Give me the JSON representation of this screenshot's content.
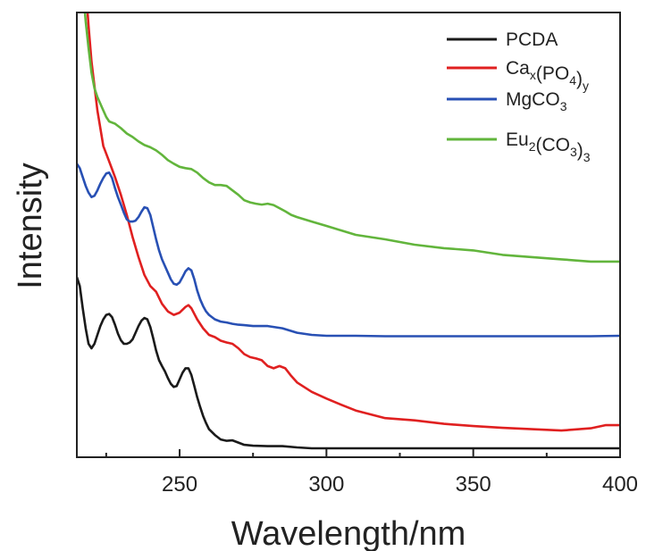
{
  "chart_data": {
    "type": "line",
    "title": "",
    "xlabel": "Wavelength/nm",
    "ylabel": "Intensity",
    "xlim": [
      215,
      400
    ],
    "ylim": [
      0,
      1
    ],
    "x_ticks": [
      250,
      300,
      350,
      400
    ],
    "x_tick_labels": [
      "250",
      "300",
      "350",
      "400"
    ],
    "y_ticks": [],
    "grid": false,
    "legend_position": "top-right",
    "series": [
      {
        "name": "PCDA",
        "legend": {
          "base": "PCDA",
          "parts": [
            {
              "t": "PCDA",
              "s": "n"
            }
          ]
        },
        "color": "#1a1a1a",
        "x": [
          215,
          216,
          217,
          218,
          219,
          220,
          221,
          222,
          223,
          224,
          225,
          226,
          227,
          228,
          229,
          230,
          231,
          232,
          233,
          234,
          235,
          236,
          237,
          238,
          239,
          240,
          241,
          242,
          243,
          244,
          245,
          246,
          247,
          248,
          249,
          250,
          251,
          252,
          253,
          254,
          255,
          256,
          257,
          258,
          259,
          260,
          262,
          264,
          266,
          268,
          270,
          272,
          275,
          280,
          285,
          290,
          295,
          300,
          310,
          320,
          330,
          340,
          350,
          360,
          370,
          380,
          390,
          400
        ],
        "y": [
          0.405,
          0.385,
          0.335,
          0.29,
          0.255,
          0.245,
          0.255,
          0.275,
          0.295,
          0.31,
          0.32,
          0.322,
          0.315,
          0.298,
          0.278,
          0.263,
          0.255,
          0.255,
          0.258,
          0.265,
          0.28,
          0.295,
          0.307,
          0.313,
          0.31,
          0.293,
          0.268,
          0.24,
          0.218,
          0.205,
          0.193,
          0.178,
          0.165,
          0.158,
          0.16,
          0.175,
          0.19,
          0.2,
          0.2,
          0.185,
          0.16,
          0.135,
          0.113,
          0.093,
          0.077,
          0.063,
          0.05,
          0.04,
          0.037,
          0.038,
          0.033,
          0.028,
          0.026,
          0.025,
          0.025,
          0.022,
          0.02,
          0.02,
          0.02,
          0.02,
          0.02,
          0.02,
          0.02,
          0.02,
          0.02,
          0.02,
          0.02,
          0.02
        ]
      },
      {
        "name": "Cax(PO4)y",
        "legend": {
          "base": "Cax(PO4)y",
          "parts": [
            {
              "t": "Ca",
              "s": "n"
            },
            {
              "t": "x",
              "s": "sub"
            },
            {
              "t": "(PO",
              "s": "n"
            },
            {
              "t": "4",
              "s": "sub"
            },
            {
              "t": ")",
              "s": "n"
            },
            {
              "t": "y",
              "s": "sub"
            }
          ]
        },
        "color": "#e02020",
        "x": [
          218,
          219,
          220,
          222,
          224,
          226,
          228,
          230,
          232,
          234,
          236,
          238,
          240,
          242,
          244,
          246,
          248,
          250,
          252,
          253,
          254,
          256,
          258,
          260,
          262,
          264,
          266,
          268,
          270,
          272,
          274,
          276,
          278,
          280,
          282,
          284,
          286,
          288,
          290,
          295,
          300,
          305,
          310,
          320,
          330,
          340,
          350,
          360,
          370,
          380,
          390,
          395,
          400
        ],
        "y": [
          1.06,
          0.97,
          0.89,
          0.78,
          0.7,
          0.665,
          0.63,
          0.59,
          0.545,
          0.495,
          0.45,
          0.41,
          0.385,
          0.372,
          0.345,
          0.328,
          0.32,
          0.325,
          0.338,
          0.342,
          0.335,
          0.31,
          0.29,
          0.275,
          0.27,
          0.262,
          0.258,
          0.255,
          0.245,
          0.232,
          0.225,
          0.222,
          0.218,
          0.205,
          0.2,
          0.205,
          0.2,
          0.183,
          0.168,
          0.147,
          0.132,
          0.118,
          0.105,
          0.088,
          0.083,
          0.075,
          0.07,
          0.066,
          0.063,
          0.06,
          0.065,
          0.072,
          0.072
        ]
      },
      {
        "name": "MgCO3",
        "legend": {
          "base": "MgCO3",
          "parts": [
            {
              "t": "MgCO",
              "s": "n"
            },
            {
              "t": "3",
              "s": "sub"
            }
          ]
        },
        "color": "#2850b4",
        "x": [
          215,
          216,
          217,
          218,
          219,
          220,
          221,
          222,
          223,
          224,
          225,
          226,
          227,
          228,
          229,
          230,
          231,
          232,
          233,
          234,
          235,
          236,
          237,
          238,
          239,
          240,
          241,
          242,
          243,
          244,
          245,
          246,
          247,
          248,
          249,
          250,
          251,
          252,
          253,
          254,
          255,
          256,
          257,
          258,
          259,
          260,
          262,
          264,
          266,
          268,
          270,
          272,
          275,
          280,
          285,
          290,
          295,
          300,
          310,
          320,
          330,
          340,
          350,
          360,
          370,
          380,
          390,
          400
        ],
        "y": [
          0.66,
          0.65,
          0.63,
          0.61,
          0.595,
          0.585,
          0.588,
          0.6,
          0.615,
          0.628,
          0.638,
          0.64,
          0.628,
          0.605,
          0.585,
          0.568,
          0.55,
          0.535,
          0.53,
          0.53,
          0.532,
          0.54,
          0.552,
          0.562,
          0.56,
          0.545,
          0.518,
          0.49,
          0.465,
          0.445,
          0.43,
          0.415,
          0.4,
          0.39,
          0.388,
          0.393,
          0.405,
          0.418,
          0.425,
          0.42,
          0.4,
          0.375,
          0.355,
          0.34,
          0.328,
          0.32,
          0.31,
          0.305,
          0.303,
          0.3,
          0.298,
          0.297,
          0.295,
          0.295,
          0.29,
          0.28,
          0.275,
          0.273,
          0.273,
          0.272,
          0.272,
          0.272,
          0.272,
          0.272,
          0.272,
          0.272,
          0.272,
          0.273
        ]
      },
      {
        "name": "Eu2(CO3)3",
        "legend": {
          "base": "Eu2(CO3)3",
          "parts": [
            {
              "t": "Eu",
              "s": "n"
            },
            {
              "t": "2",
              "s": "sub"
            },
            {
              "t": "(CO",
              "s": "n"
            },
            {
              "t": "3",
              "s": "sub"
            },
            {
              "t": ")",
              "s": "n"
            },
            {
              "t": "3",
              "s": "sub"
            }
          ]
        },
        "color": "#62b53c",
        "x": [
          217,
          218,
          219,
          220,
          221,
          222,
          223,
          224,
          225,
          226,
          228,
          230,
          232,
          234,
          236,
          238,
          240,
          242,
          244,
          246,
          248,
          250,
          252,
          254,
          256,
          258,
          260,
          262,
          264,
          266,
          268,
          270,
          272,
          274,
          276,
          278,
          280,
          282,
          284,
          286,
          288,
          290,
          295,
          300,
          305,
          310,
          320,
          330,
          340,
          350,
          360,
          370,
          380,
          390,
          400
        ],
        "y": [
          1.06,
          0.98,
          0.92,
          0.865,
          0.83,
          0.81,
          0.795,
          0.78,
          0.765,
          0.755,
          0.75,
          0.74,
          0.728,
          0.72,
          0.71,
          0.702,
          0.697,
          0.69,
          0.68,
          0.668,
          0.66,
          0.653,
          0.65,
          0.648,
          0.64,
          0.628,
          0.618,
          0.612,
          0.612,
          0.61,
          0.6,
          0.59,
          0.578,
          0.573,
          0.57,
          0.568,
          0.57,
          0.567,
          0.56,
          0.553,
          0.545,
          0.54,
          0.53,
          0.52,
          0.51,
          0.5,
          0.49,
          0.478,
          0.47,
          0.465,
          0.455,
          0.45,
          0.445,
          0.44,
          0.44
        ]
      }
    ]
  }
}
